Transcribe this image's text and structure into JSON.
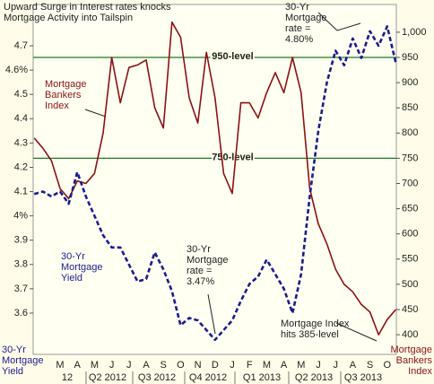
{
  "chart_data": {
    "type": "line",
    "title": "Upward Surge in Interest rates knocks Mortgage Activity into Tailspin",
    "y_label": "30-Yr Mortgage Yield",
    "y2_label": "Mortgage Bankers Index",
    "categories": [
      null,
      null,
      null,
      "M",
      null,
      "A",
      null,
      "M",
      null,
      "J",
      null,
      "J",
      null,
      "A",
      null,
      "S",
      null,
      "O",
      null,
      "N",
      null,
      "D",
      null,
      "J",
      null,
      "F",
      null,
      "M",
      null,
      "A",
      null,
      "M",
      null,
      "J",
      null,
      "J",
      null,
      "A",
      null,
      "S",
      null,
      "O",
      null
    ],
    "quarters": [
      "12",
      "Q2 2012",
      "Q3 2012",
      "Q4 2012",
      "Q1 2013",
      "Q2 2013",
      "Q3 2013"
    ],
    "series": [
      {
        "name": "Mortgage Bankers Index",
        "color": "#8b1212",
        "axis": "y2",
        "dashed": false,
        "values": [
          790,
          770,
          745,
          690,
          670,
          705,
          700,
          720,
          800,
          950,
          860,
          930,
          935,
          945,
          850,
          810,
          1020,
          990,
          870,
          820,
          960,
          870,
          720,
          680,
          860,
          860,
          830,
          880,
          920,
          880,
          950,
          880,
          690,
          620,
          580,
          530,
          500,
          485,
          460,
          445,
          400,
          430,
          450
        ]
      },
      {
        "name": "30-Yr Mortgage Yield",
        "color": "#1c1c8e",
        "axis": "y",
        "dashed": true,
        "values": [
          4.09,
          4.1,
          4.08,
          4.1,
          4.05,
          4.18,
          4.08,
          4.0,
          3.92,
          3.87,
          3.87,
          3.8,
          3.73,
          3.74,
          3.85,
          3.78,
          3.69,
          3.55,
          3.58,
          3.57,
          3.53,
          3.49,
          3.53,
          3.57,
          3.65,
          3.72,
          3.75,
          3.82,
          3.76,
          3.7,
          3.6,
          3.76,
          4.08,
          4.35,
          4.55,
          4.68,
          4.62,
          4.73,
          4.65,
          4.76,
          4.7,
          4.78,
          4.63
        ]
      }
    ],
    "ylim": [
      3.43,
      4.87
    ],
    "yticks": [
      3.6,
      3.7,
      3.8,
      3.9,
      {
        "value": 4.0,
        "label": "4%"
      },
      4.1,
      4.2,
      4.3,
      4.4,
      4.5,
      {
        "value": 4.6,
        "label": "4.6%"
      },
      4.7
    ],
    "y2lim": [
      361,
      1055
    ],
    "y2ticks": [
      400,
      450,
      500,
      550,
      600,
      650,
      700,
      750,
      800,
      850,
      900,
      950,
      {
        "value": 1000,
        "label": "1,000"
      }
    ],
    "reference_lines": [
      {
        "value": 950,
        "label": "950-level",
        "axis": "y2",
        "color": "#1e7a1e"
      },
      {
        "value": 750,
        "label": "750-level",
        "axis": "y2",
        "color": "#1e7a1e"
      }
    ],
    "annotations": [
      "30-Yr Mortgage rate = 4.80%",
      "30-Yr Mortgage rate = 3.47%",
      "Mortgage Index hits 385-level"
    ]
  }
}
